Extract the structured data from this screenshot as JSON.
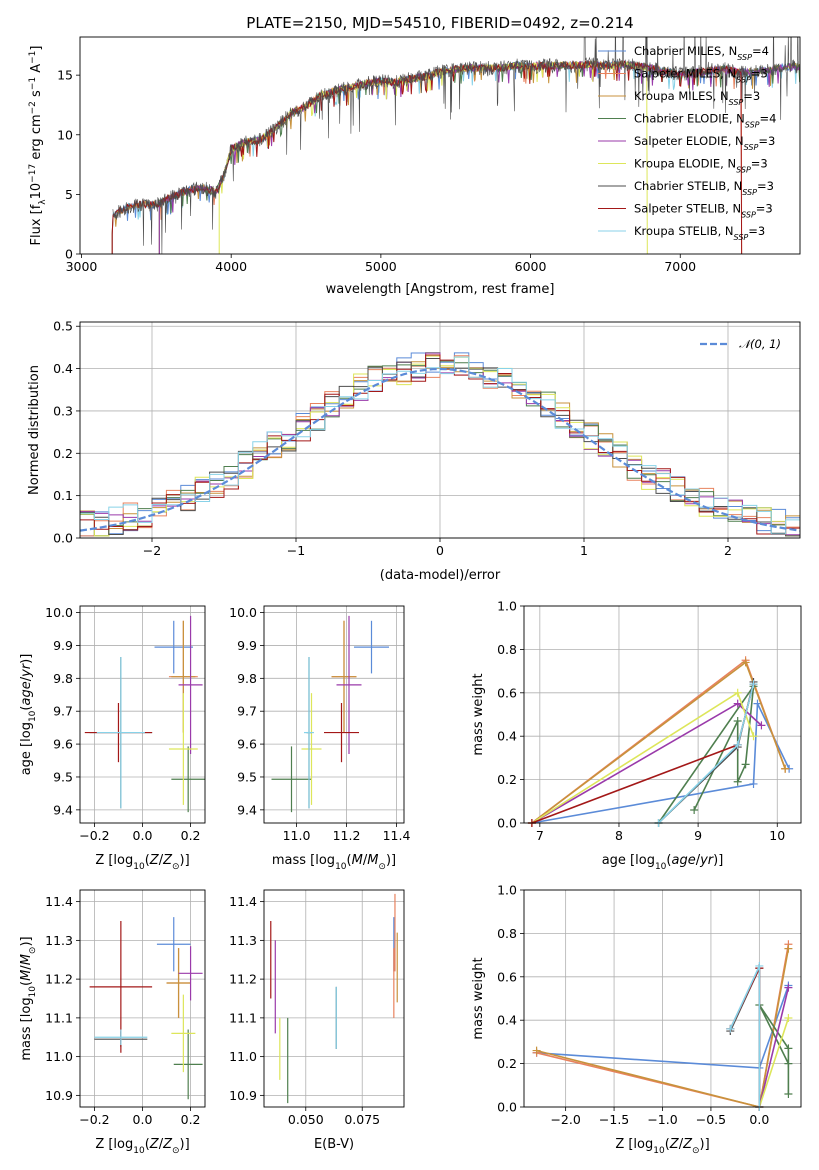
{
  "figure": {
    "title": "PLATE=2150, MJD=54510, FIBERID=0492, z=0.214"
  },
  "colors": {
    "chabrier_miles": "#5b8bd8",
    "salpeter_miles": "#e8825e",
    "kroupa_miles": "#c8923c",
    "chabrier_elodie": "#4f7f4f",
    "salpeter_elodie": "#9a3aaa",
    "kroupa_elodie": "#dde65a",
    "chabrier_stelib": "#4d4d4d",
    "salpeter_stelib": "#a31818",
    "kroupa_stelib": "#88d2e8",
    "normal": "#5b8bd8",
    "grid": "#b0b0b0"
  },
  "chart_data": [
    {
      "id": "spectrum",
      "type": "line",
      "title": "PLATE=2150, MJD=54510, FIBERID=0492, z=0.214",
      "xlabel": "wavelength [Angstrom, rest frame]",
      "ylabel": "Flux [f_λ10⁻¹⁷ erg cm⁻² s⁻¹ A⁻¹]",
      "xlim": [
        2990,
        7800
      ],
      "ylim": [
        0,
        18.2
      ],
      "xticks": [
        "3000",
        "4000",
        "5000",
        "6000",
        "7000"
      ],
      "yticks": [
        "0",
        "5",
        "10",
        "15"
      ],
      "grid": false,
      "legend_position": "upper-right",
      "legend": [
        {
          "label": "Chabrier MILES, N",
          "sub": "SSP",
          "suffix": "=4",
          "color": "#5b8bd8"
        },
        {
          "label": "Salpeter MILES, N",
          "sub": "SSP",
          "suffix": "=3",
          "color": "#e8825e"
        },
        {
          "label": "Kroupa MILES, N",
          "sub": "SSP",
          "suffix": "=3",
          "color": "#c8923c"
        },
        {
          "label": "Chabrier ELODIE, N",
          "sub": "SSP",
          "suffix": "=4",
          "color": "#4f7f4f"
        },
        {
          "label": "Salpeter ELODIE, N",
          "sub": "SSP",
          "suffix": "=3",
          "color": "#9a3aaa"
        },
        {
          "label": "Kroupa ELODIE, N",
          "sub": "SSP",
          "suffix": "=3",
          "color": "#dde65a"
        },
        {
          "label": "Chabrier STELIB, N",
          "sub": "SSP",
          "suffix": "=3",
          "color": "#4d4d4d"
        },
        {
          "label": "Salpeter STELIB, N",
          "sub": "SSP",
          "suffix": "=3",
          "color": "#a31818"
        },
        {
          "label": "Kroupa STELIB, N",
          "sub": "SSP",
          "suffix": "=3",
          "color": "#88d2e8"
        }
      ],
      "continuum": [
        [
          3200,
          0
        ],
        [
          3210,
          3.3
        ],
        [
          3300,
          3.9
        ],
        [
          3400,
          4.2
        ],
        [
          3500,
          4.1
        ],
        [
          3600,
          4.8
        ],
        [
          3700,
          5.3
        ],
        [
          3800,
          5.6
        ],
        [
          3900,
          5.2
        ],
        [
          3950,
          6.5
        ],
        [
          4000,
          8.8
        ],
        [
          4100,
          9.4
        ],
        [
          4200,
          9.6
        ],
        [
          4300,
          10.6
        ],
        [
          4400,
          11.8
        ],
        [
          4500,
          12.4
        ],
        [
          4600,
          13.3
        ],
        [
          4700,
          13.7
        ],
        [
          4800,
          14.0
        ],
        [
          4900,
          14.3
        ],
        [
          5000,
          14.5
        ],
        [
          5100,
          14.4
        ],
        [
          5200,
          14.7
        ],
        [
          5300,
          14.9
        ],
        [
          5400,
          15.3
        ],
        [
          5500,
          15.5
        ],
        [
          5600,
          15.6
        ],
        [
          5700,
          15.6
        ],
        [
          5800,
          15.6
        ],
        [
          5900,
          15.8
        ],
        [
          6000,
          15.7
        ],
        [
          6100,
          15.8
        ],
        [
          6200,
          15.8
        ],
        [
          6300,
          15.8
        ],
        [
          6400,
          15.9
        ],
        [
          6500,
          15.8
        ],
        [
          6600,
          15.9
        ],
        [
          6700,
          15.8
        ],
        [
          6800,
          15.6
        ],
        [
          6900,
          15.3
        ],
        [
          7000,
          15.1
        ],
        [
          7100,
          15.2
        ],
        [
          7200,
          15.4
        ],
        [
          7300,
          15.5
        ],
        [
          7400,
          15.2
        ],
        [
          7500,
          15.3
        ],
        [
          7600,
          15.4
        ],
        [
          7700,
          15.7
        ],
        [
          7800,
          15.7
        ]
      ],
      "cutoffs": {
        "chabrier_elodie_start": 3520,
        "kroupa_elodie_start": 3920,
        "salpeter_miles_end": 7410,
        "kroupa_elodie_end": 6780
      }
    },
    {
      "id": "residuals",
      "type": "histogram",
      "xlabel": "(data-model)/error",
      "ylabel": "Normed distribution",
      "xlim": [
        -2.5,
        2.5
      ],
      "ylim": [
        0,
        0.51
      ],
      "xticks": [
        "−2",
        "−1",
        "0",
        "1",
        "2"
      ],
      "yticks": [
        "0.0",
        "0.1",
        "0.2",
        "0.3",
        "0.4",
        "0.5"
      ],
      "grid": true,
      "legend_position": "upper-right",
      "legend": [
        {
          "label": "𝒩(0, 1)",
          "style": "dashed",
          "color": "#5b8bd8"
        }
      ],
      "bin_width": 0.1,
      "bin_start": -2.5
    },
    {
      "id": "age_vs_Z",
      "type": "errorbar",
      "xlabel": "Z [log10(Z/Z⊙)]",
      "ylabel": "age  [log10(age/yr)]",
      "xlim": [
        -0.26,
        0.26
      ],
      "ylim": [
        9.36,
        10.02
      ],
      "xticks": [
        "−0.2",
        "0.0",
        "0.2"
      ],
      "yticks": [
        "9.4",
        "9.5",
        "9.6",
        "9.7",
        "9.8",
        "9.9",
        "10.0"
      ],
      "grid": true,
      "points": [
        {
          "c": "chabrier_miles",
          "x": 0.13,
          "xe": 0.08,
          "y": 9.895,
          "ye": 0.08
        },
        {
          "c": "salpeter_miles",
          "x": 0.17,
          "xe": 0.06,
          "y": 9.805,
          "ye": 0.17
        },
        {
          "c": "kroupa_miles",
          "x": 0.17,
          "xe": 0.05,
          "y": 9.805,
          "ye": 0.17
        },
        {
          "c": "chabrier_elodie",
          "x": 0.19,
          "xe": 0.07,
          "y": 9.493,
          "ye": 0.1
        },
        {
          "c": "salpeter_elodie",
          "x": 0.2,
          "xe": 0.05,
          "y": 9.78,
          "ye": 0.21
        },
        {
          "c": "kroupa_elodie",
          "x": 0.17,
          "xe": 0.06,
          "y": 9.585,
          "ye": 0.17
        },
        {
          "c": "chabrier_stelib",
          "x": -0.09,
          "xe": 0.13,
          "y": 9.635,
          "ye": 0.23
        },
        {
          "c": "salpeter_stelib",
          "x": -0.1,
          "xe": 0.14,
          "y": 9.635,
          "ye": 0.09
        },
        {
          "c": "kroupa_stelib",
          "x": -0.09,
          "xe": 0.1,
          "y": 9.635,
          "ye": 0.23
        }
      ]
    },
    {
      "id": "age_vs_mass",
      "type": "errorbar",
      "xlabel": "mass [log10(M/M⊙)]",
      "ylabel": "",
      "xlim": [
        10.87,
        11.43
      ],
      "ylim": [
        9.36,
        10.02
      ],
      "xticks": [
        "11.0",
        "11.2",
        "11.4"
      ],
      "yticks": [
        "9.4",
        "9.5",
        "9.6",
        "9.7",
        "9.8",
        "9.9",
        "10.0"
      ],
      "grid": true,
      "points": [
        {
          "c": "chabrier_miles",
          "x": 11.3,
          "xe": 0.07,
          "y": 9.895,
          "ye": 0.08
        },
        {
          "c": "salpeter_miles",
          "x": 11.19,
          "xe": 0.05,
          "y": 9.805,
          "ye": 0.17
        },
        {
          "c": "kroupa_miles",
          "x": 11.19,
          "xe": 0.05,
          "y": 9.805,
          "ye": 0.17
        },
        {
          "c": "chabrier_elodie",
          "x": 10.98,
          "xe": 0.08,
          "y": 9.493,
          "ye": 0.1
        },
        {
          "c": "salpeter_elodie",
          "x": 11.21,
          "xe": 0.05,
          "y": 9.78,
          "ye": 0.21
        },
        {
          "c": "kroupa_elodie",
          "x": 11.06,
          "xe": 0.04,
          "y": 9.585,
          "ye": 0.17
        },
        {
          "c": "chabrier_stelib",
          "x": 11.05,
          "xe": 0.01,
          "y": 9.635,
          "ye": 0.23
        },
        {
          "c": "salpeter_stelib",
          "x": 11.18,
          "xe": 0.07,
          "y": 9.635,
          "ye": 0.09
        },
        {
          "c": "kroupa_stelib",
          "x": 11.05,
          "xe": 0.02,
          "y": 9.635,
          "ye": 0.23
        }
      ]
    },
    {
      "id": "mass_weight_vs_age",
      "type": "line",
      "xlabel": "age  [log10(age/yr)]",
      "ylabel": "mass weight",
      "xlim": [
        6.8,
        10.3
      ],
      "ylim": [
        0,
        1.0
      ],
      "xticks": [
        "7",
        "8",
        "9",
        "10"
      ],
      "yticks": [
        "0.0",
        "0.2",
        "0.4",
        "0.6",
        "0.8",
        "1.0"
      ],
      "grid": true,
      "series": [
        {
          "c": "chabrier_miles",
          "x": [
            6.9,
            9.7,
            9.75,
            10.15
          ],
          "y": [
            0.0,
            0.18,
            0.55,
            0.25
          ]
        },
        {
          "c": "salpeter_miles",
          "x": [
            6.9,
            9.6,
            10.1
          ],
          "y": [
            0.0,
            0.75,
            0.25
          ]
        },
        {
          "c": "kroupa_miles",
          "x": [
            6.9,
            9.6,
            10.1
          ],
          "y": [
            0.0,
            0.74,
            0.25
          ]
        },
        {
          "c": "chabrier_elodie",
          "x": [
            8.95,
            9.5,
            9.5,
            9.6,
            9.7,
            8.5
          ],
          "y": [
            0.06,
            0.47,
            0.19,
            0.27,
            0.63,
            0.0
          ]
        },
        {
          "c": "salpeter_elodie",
          "x": [
            6.9,
            9.5,
            9.8
          ],
          "y": [
            0.0,
            0.55,
            0.45
          ]
        },
        {
          "c": "kroupa_elodie",
          "x": [
            6.9,
            9.5,
            9.7
          ],
          "y": [
            0.0,
            0.6,
            0.4
          ]
        },
        {
          "c": "chabrier_stelib",
          "x": [
            8.5,
            9.5,
            9.7
          ],
          "y": [
            0.0,
            0.35,
            0.65
          ]
        },
        {
          "c": "salpeter_stelib",
          "x": [
            6.9,
            9.5,
            9.7
          ],
          "y": [
            0.0,
            0.36,
            0.64
          ]
        },
        {
          "c": "kroupa_stelib",
          "x": [
            8.5,
            9.5,
            9.7
          ],
          "y": [
            0.0,
            0.36,
            0.64
          ]
        }
      ]
    },
    {
      "id": "mass_vs_Z",
      "type": "errorbar",
      "xlabel": "Z [log10(Z/Z⊙)]",
      "ylabel": "mass [log10(M/M⊙)]",
      "xlim": [
        -0.26,
        0.26
      ],
      "ylim": [
        10.87,
        11.43
      ],
      "xticks": [
        "−0.2",
        "0.0",
        "0.2"
      ],
      "yticks": [
        "10.9",
        "11.0",
        "11.1",
        "11.2",
        "11.3",
        "11.4"
      ],
      "grid": true,
      "points": [
        {
          "c": "chabrier_miles",
          "x": 0.13,
          "xe": 0.07,
          "y": 11.29,
          "ye": 0.07
        },
        {
          "c": "salpeter_miles",
          "x": 0.15,
          "xe": 0.05,
          "y": 11.19,
          "ye": 0.09
        },
        {
          "c": "kroupa_miles",
          "x": 0.15,
          "xe": 0.05,
          "y": 11.19,
          "ye": 0.09
        },
        {
          "c": "chabrier_elodie",
          "x": 0.19,
          "xe": 0.06,
          "y": 10.98,
          "ye": 0.09
        },
        {
          "c": "salpeter_elodie",
          "x": 0.2,
          "xe": 0.05,
          "y": 11.215,
          "ye": 0.07
        },
        {
          "c": "kroupa_elodie",
          "x": 0.17,
          "xe": 0.05,
          "y": 11.06,
          "ye": 0.1
        },
        {
          "c": "chabrier_stelib",
          "x": -0.09,
          "xe": 0.11,
          "y": 11.045,
          "ye": 0.02
        },
        {
          "c": "salpeter_stelib",
          "x": -0.09,
          "xe": 0.13,
          "y": 11.18,
          "ye": 0.17
        },
        {
          "c": "kroupa_stelib",
          "x": -0.09,
          "xe": 0.11,
          "y": 11.05,
          "ye": 0.02
        }
      ]
    },
    {
      "id": "mass_vs_ebv",
      "type": "errorbar",
      "xlabel": "E(B-V)",
      "ylabel": "",
      "xlim": [
        0.0315,
        0.0935
      ],
      "ylim": [
        10.87,
        11.43
      ],
      "xticks": [
        "0.050",
        "0.075"
      ],
      "xtick_values": [
        0.05,
        0.075
      ],
      "yticks": [
        "10.9",
        "11.0",
        "11.1",
        "11.2",
        "11.3",
        "11.4"
      ],
      "grid": true,
      "points": [
        {
          "c": "chabrier_miles",
          "x": 0.089,
          "xe": 0,
          "y": 11.29,
          "ye": 0.07
        },
        {
          "c": "salpeter_miles",
          "x": 0.089,
          "xe": 0,
          "y": 11.19,
          "ye": 0.09
        },
        {
          "c": "kroupa_miles",
          "x": 0.0905,
          "xe": 0,
          "y": 11.23,
          "ye": 0.09
        },
        {
          "c": "chabrier_elodie",
          "x": 0.042,
          "xe": 0,
          "y": 10.99,
          "ye": 0.11
        },
        {
          "c": "salpeter_elodie",
          "x": 0.0365,
          "xe": 0,
          "y": 11.18,
          "ye": 0.12
        },
        {
          "c": "kroupa_elodie",
          "x": 0.0385,
          "xe": 0,
          "y": 11.02,
          "ye": 0.08
        },
        {
          "c": "chabrier_stelib",
          "x": 0.0635,
          "xe": 0,
          "y": 11.1,
          "ye": 0.08
        },
        {
          "c": "salpeter_stelib",
          "x": 0.0345,
          "xe": 0,
          "y": 11.25,
          "ye": 0.1
        },
        {
          "c": "kroupa_stelib",
          "x": 0.0635,
          "xe": 0,
          "y": 11.1,
          "ye": 0.08
        },
        {
          "c": "salpeter_miles",
          "x": 0.0895,
          "xe": 0,
          "y": 11.32,
          "ye": 0.1
        }
      ]
    },
    {
      "id": "mass_weight_vs_Z",
      "type": "line",
      "xlabel": "Z [log10(Z/Z⊙)]",
      "ylabel": "mass weight",
      "xlim": [
        -2.43,
        0.43
      ],
      "ylim": [
        0,
        1.0
      ],
      "xticks": [
        "−2.0",
        "−1.5",
        "−1.0",
        "−0.5",
        "0.0"
      ],
      "xtick_values": [
        -2.0,
        -1.5,
        -1.0,
        -0.5,
        0.0
      ],
      "yticks": [
        "0.0",
        "0.2",
        "0.4",
        "0.6",
        "0.8",
        "1.0"
      ],
      "grid": true,
      "series": [
        {
          "c": "chabrier_miles",
          "x": [
            -2.3,
            0.0,
            0.3
          ],
          "y": [
            0.25,
            0.18,
            0.56
          ]
        },
        {
          "c": "salpeter_miles",
          "x": [
            -2.3,
            0.0,
            0.3
          ],
          "y": [
            0.25,
            0.0,
            0.75
          ]
        },
        {
          "c": "kroupa_miles",
          "x": [
            -2.3,
            0.0,
            0.3
          ],
          "y": [
            0.26,
            0.0,
            0.73
          ]
        },
        {
          "c": "chabrier_elodie",
          "x": [
            0.3,
            0.3,
            0.0,
            0.3
          ],
          "y": [
            0.06,
            0.27,
            0.47,
            0.2
          ]
        },
        {
          "c": "salpeter_elodie",
          "x": [
            0.0,
            0.3
          ],
          "y": [
            0.0,
            0.55
          ]
        },
        {
          "c": "kroupa_elodie",
          "x": [
            0.0,
            0.3
          ],
          "y": [
            0.0,
            0.41
          ]
        },
        {
          "c": "chabrier_stelib",
          "x": [
            -0.3,
            0.0,
            0.0
          ],
          "y": [
            0.35,
            0.64,
            0.0
          ]
        },
        {
          "c": "salpeter_stelib",
          "x": [
            -0.3,
            0.0,
            0.0
          ],
          "y": [
            0.36,
            0.64,
            0.0
          ]
        },
        {
          "c": "kroupa_stelib",
          "x": [
            -0.3,
            0.0,
            0.0
          ],
          "y": [
            0.36,
            0.65,
            0.0
          ]
        }
      ]
    }
  ]
}
